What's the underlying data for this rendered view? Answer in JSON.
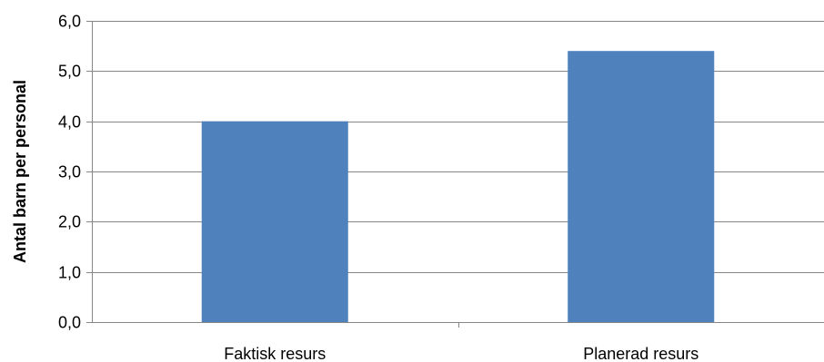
{
  "chart_data": {
    "type": "bar",
    "title": "",
    "xlabel": "",
    "ylabel": "Antal barn per personal",
    "categories": [
      "Faktisk resurs",
      "Planerad resurs"
    ],
    "values": [
      4.0,
      5.4
    ],
    "ylim": [
      0,
      6
    ],
    "ytick_step": 1,
    "ytick_labels": [
      "0,0",
      "1,0",
      "2,0",
      "3,0",
      "4,0",
      "5,0",
      "6,0"
    ],
    "grid": true,
    "legend": "none",
    "bar_color": "#4F81BD",
    "grid_color": "#868686"
  }
}
